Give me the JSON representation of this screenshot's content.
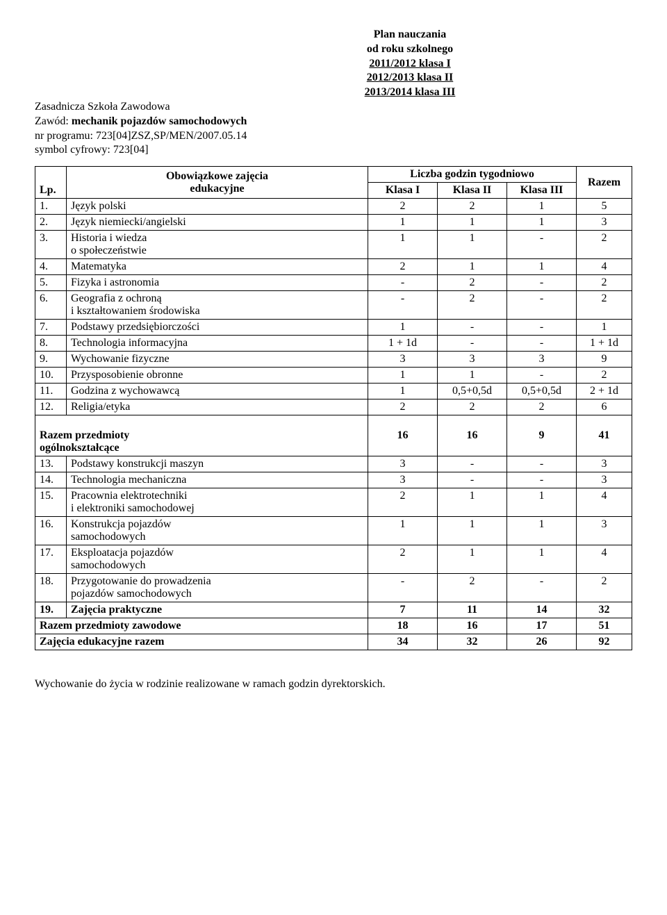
{
  "header": {
    "title": "Plan nauczania",
    "sub1": "od roku szkolnego",
    "sub2": "2011/2012 klasa I",
    "sub3": "2012/2013 klasa II",
    "sub4": "2013/2014 klasa III",
    "left1": "Zasadnicza Szkoła Zawodowa",
    "left2a": "Zawód: ",
    "left2b": "mechanik pojazdów samochodowych",
    "left3": "nr programu: 723[04]ZSZ,SP/MEN/2007.05.14",
    "left4": "symbol cyfrowy: 723[04]"
  },
  "table_head": {
    "lp": "Lp.",
    "subject_l1": "Obowiązkowe zajęcia",
    "subject_l2": "edukacyjne",
    "hours": "Liczba godzin tygodniowo",
    "k1": "Klasa I",
    "k2": "Klasa II",
    "k3": "Klasa III",
    "total": "Razem"
  },
  "rows_general": [
    {
      "lp": "1.",
      "name": "Język polski",
      "c1": "2",
      "c2": "2",
      "c3": "1",
      "sum": "5"
    },
    {
      "lp": "2.",
      "name": "Język niemiecki/angielski",
      "c1": "1",
      "c2": "1",
      "c3": "1",
      "sum": "3"
    },
    {
      "lp": "3.",
      "name": "Historia i wiedza\no społeczeństwie",
      "c1": "1",
      "c2": "1",
      "c3": "-",
      "sum": "2"
    },
    {
      "lp": "4.",
      "name": "Matematyka",
      "c1": "2",
      "c2": "1",
      "c3": "1",
      "sum": "4"
    },
    {
      "lp": "5.",
      "name": "Fizyka i astronomia",
      "c1": "-",
      "c2": "2",
      "c3": "-",
      "sum": "2"
    },
    {
      "lp": "6.",
      "name": "Geografia z ochroną\ni kształtowaniem środowiska",
      "c1": "-",
      "c2": "2",
      "c3": "-",
      "sum": "2"
    },
    {
      "lp": "7.",
      "name": "Podstawy przedsiębiorczości",
      "c1": "1",
      "c2": "-",
      "c3": "-",
      "sum": "1"
    },
    {
      "lp": "8.",
      "name": "Technologia informacyjna",
      "c1": "1 + 1d",
      "c2": "-",
      "c3": "-",
      "sum": "1 + 1d"
    },
    {
      "lp": "9.",
      "name": "Wychowanie fizyczne",
      "c1": "3",
      "c2": "3",
      "c3": "3",
      "sum": "9"
    },
    {
      "lp": "10.",
      "name": "Przysposobienie obronne",
      "c1": "1",
      "c2": "1",
      "c3": "-",
      "sum": "2"
    },
    {
      "lp": "11.",
      "name": "Godzina z wychowawcą",
      "c1": "1",
      "c2": "0,5+0,5d",
      "c3": "0,5+0,5d",
      "sum": "2 + 1d"
    },
    {
      "lp": "12.",
      "name": "Religia/etyka",
      "c1": "2",
      "c2": "2",
      "c3": "2",
      "sum": "6"
    }
  ],
  "general_total": {
    "label": "Razem przedmioty\nogólnokształcące",
    "c1": "16",
    "c2": "16",
    "c3": "9",
    "sum": "41"
  },
  "rows_vocational": [
    {
      "lp": "13.",
      "name": "Podstawy konstrukcji maszyn",
      "c1": "3",
      "c2": "-",
      "c3": "-",
      "sum": "3"
    },
    {
      "lp": "14.",
      "name": "Technologia mechaniczna",
      "c1": "3",
      "c2": "-",
      "c3": "-",
      "sum": "3"
    },
    {
      "lp": "15.",
      "name": "Pracownia elektrotechniki\ni elektroniki samochodowej",
      "c1": "2",
      "c2": "1",
      "c3": "1",
      "sum": "4"
    },
    {
      "lp": "16.",
      "name": "Konstrukcja pojazdów\nsamochodowych",
      "c1": "1",
      "c2": "1",
      "c3": "1",
      "sum": "3"
    },
    {
      "lp": "17.",
      "name": "Eksploatacja pojazdów\nsamochodowych",
      "c1": "2",
      "c2": "1",
      "c3": "1",
      "sum": "4"
    },
    {
      "lp": "18.",
      "name": "Przygotowanie do prowadzenia\npojazdów samochodowych",
      "c1": "-",
      "c2": "2",
      "c3": "-",
      "sum": "2"
    },
    {
      "lp": "19.",
      "name": "Zajęcia praktyczne",
      "c1": "7",
      "c2": "11",
      "c3": "14",
      "sum": "32",
      "bold": true
    }
  ],
  "voc_total": {
    "label": "Razem przedmioty zawodowe",
    "c1": "18",
    "c2": "16",
    "c3": "17",
    "sum": "51"
  },
  "grand_total": {
    "label": "Zajęcia edukacyjne razem",
    "c1": "34",
    "c2": "32",
    "c3": "26",
    "sum": "92"
  },
  "footer": "Wychowanie do życia w rodzinie realizowane w ramach godzin dyrektorskich.",
  "style": {
    "col_widths": {
      "lp": "38px",
      "subj": "auto",
      "c": "100px",
      "sum": "80px"
    }
  }
}
